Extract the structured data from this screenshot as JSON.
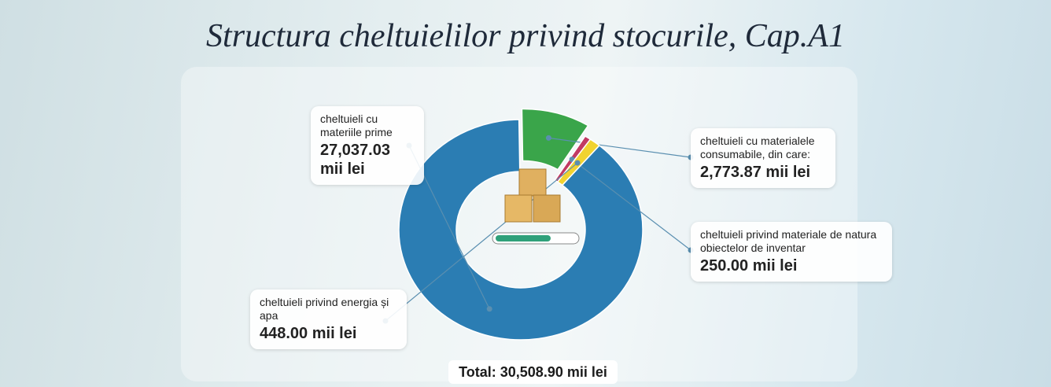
{
  "chart_data": {
    "type": "donut",
    "title": "Structura cheltuielilor privind stocurile, Cap.A1",
    "categories": [
      "cheltuieli cu materiile prime",
      "cheltuieli cu materialele consumabile, din care:",
      "cheltuieli privind materiale de natura obiectelor de inventar",
      "cheltuieli privind energia și apa"
    ],
    "values": [
      27037.03,
      2773.87,
      250.0,
      448.0
    ],
    "value_labels": [
      "27,037.03 mii lei",
      "2,773.87 mii lei",
      "250.00 mii lei",
      "448.00 mii lei"
    ],
    "colors": [
      "#2b7db3",
      "#3aa54a",
      "#c23a63",
      "#f1d330"
    ],
    "total_label": "Total: 30,508.90 mii lei"
  }
}
